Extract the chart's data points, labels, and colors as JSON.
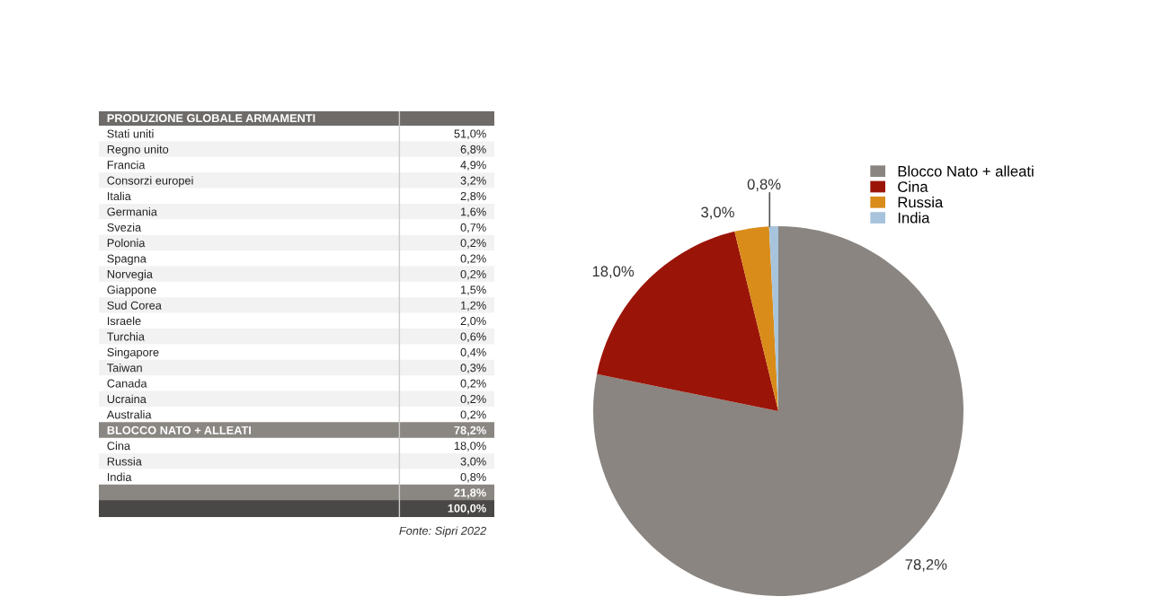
{
  "chart_data": [
    {
      "type": "other",
      "title": "PRODUZIONE GLOBALE ARMAMENTI",
      "categories": [
        "Stati uniti",
        "Regno unito",
        "Francia",
        "Consorzi europei",
        "Italia",
        "Germania",
        "Svezia",
        "Polonia",
        "Spagna",
        "Norvegia",
        "Giappone",
        "Sud Corea",
        "Israele",
        "Turchia",
        "Singapore",
        "Taiwan",
        "Canada",
        "Ucraina",
        "Australia",
        "BLOCCO NATO + ALLEATI",
        "Cina",
        "Russia",
        "India",
        null,
        null
      ],
      "value_labels": [
        "51,0%",
        "6,8%",
        "4,9%",
        "3,2%",
        "2,8%",
        "1,6%",
        "0,7%",
        "0,2%",
        "0,2%",
        "0,2%",
        "1,5%",
        "1,2%",
        "2,0%",
        "0,6%",
        "0,4%",
        "0,3%",
        "0,2%",
        "0,2%",
        "0,2%",
        "78,2%",
        "18,0%",
        "3,0%",
        "0,8%",
        "21,8%",
        "100,0%"
      ],
      "annotations": [
        "Fonte: Sipri 2022"
      ]
    },
    {
      "type": "pie",
      "categories": [
        "Blocco Nato + alleati",
        "Cina",
        "Russia",
        "India"
      ],
      "values": [
        78.2,
        18.0,
        3.0,
        0.8
      ],
      "colors": [
        "#8a8580",
        "#9b1408",
        "#d98c1a",
        "#a8c4dc"
      ],
      "value_labels": [
        "78,2%",
        "18,0%",
        "3,0%",
        "0,8%"
      ],
      "legend": "top right"
    }
  ]
}
